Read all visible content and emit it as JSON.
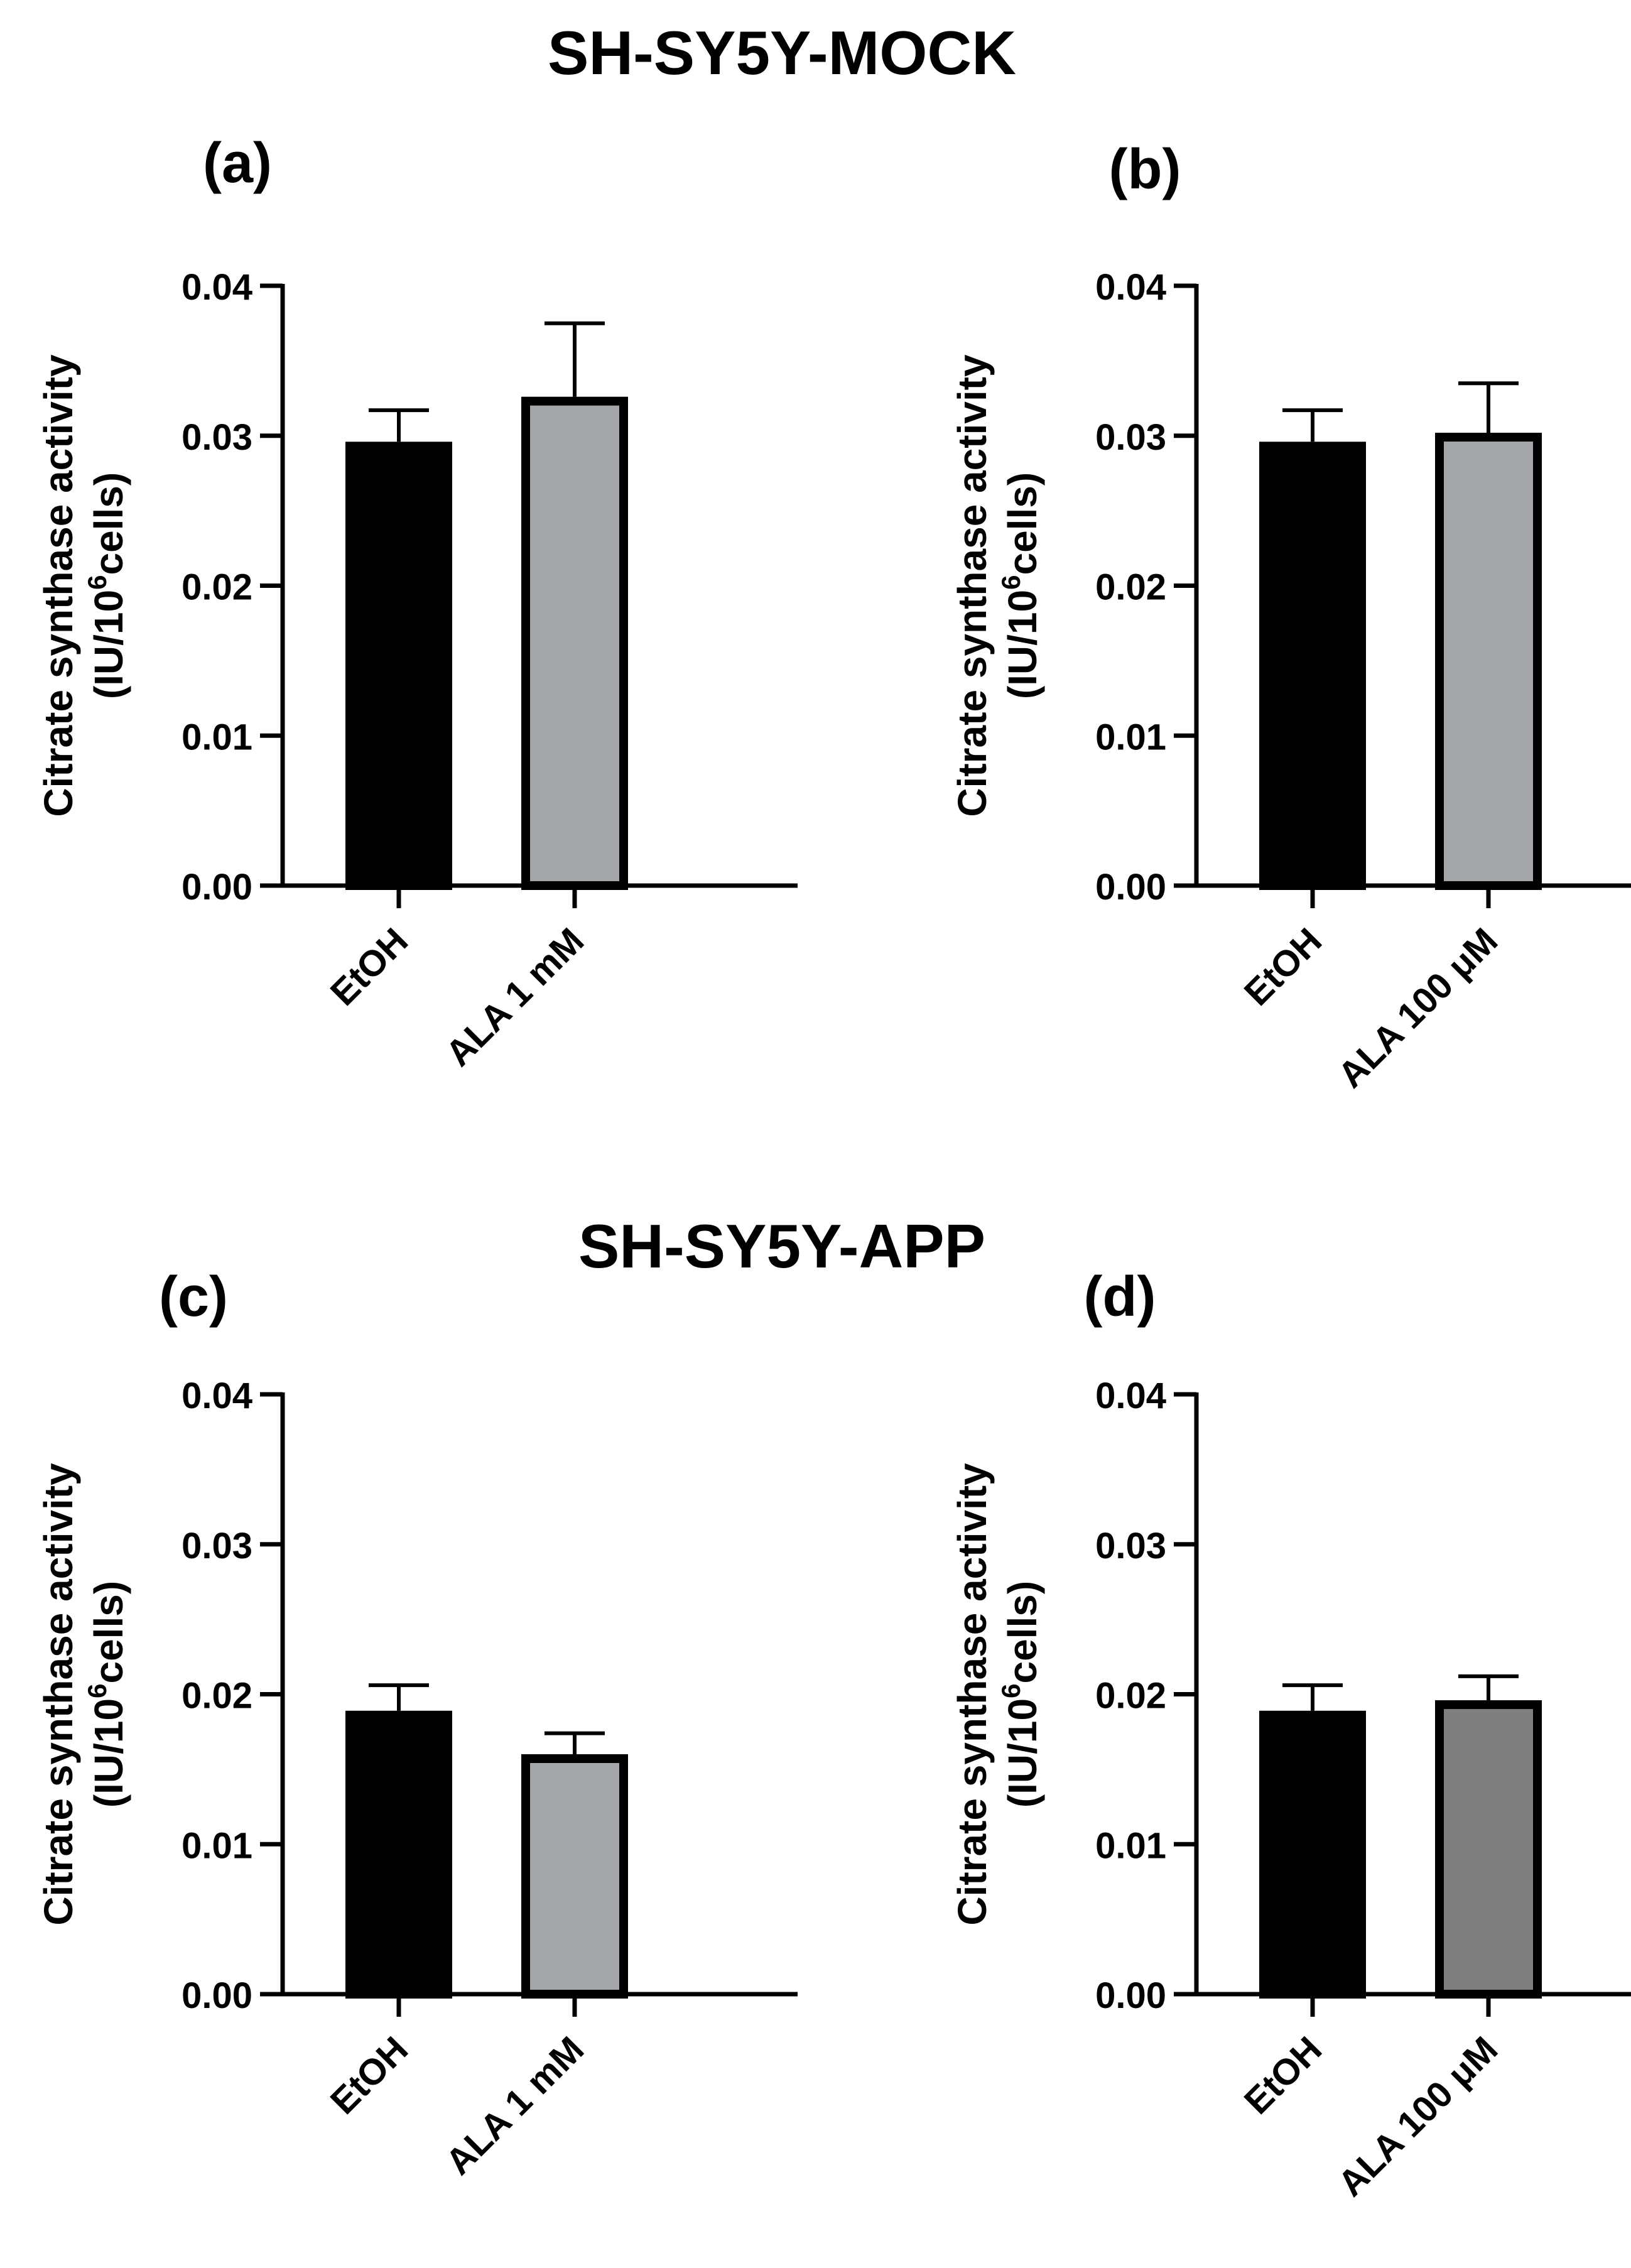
{
  "figure": {
    "section_titles": [
      "SH-SY5Y-MOCK",
      "SH-SY5Y-APP"
    ]
  },
  "colors": {
    "axis": "#000000",
    "etoh_fill": "#000000",
    "ala_fill_light": "#a4a5a9",
    "ala_fill_dark": "#7f7f7f",
    "bar_border": "#000000"
  },
  "chart_data": [
    {
      "panel_label": "(a)",
      "type": "bar",
      "title": "",
      "ylabel_line1": "Citrate synthase activity",
      "ylabel_line2": "(IU/10",
      "ylabel_sup": "6",
      "ylabel_line2_end": "cells)",
      "ylim": [
        0,
        0.04
      ],
      "yticks": [
        "0.00",
        "0.01",
        "0.02",
        "0.03",
        "0.04"
      ],
      "ytick_values": [
        0,
        0.01,
        0.02,
        0.03,
        0.04
      ],
      "categories": [
        "EtOH",
        "ALA 1 mM"
      ],
      "values": [
        0.0296,
        0.0326
      ],
      "errors": [
        0.0021,
        0.0049
      ],
      "colors": [
        "#000000",
        "#a4a5a9"
      ]
    },
    {
      "panel_label": "(b)",
      "type": "bar",
      "title": "",
      "ylabel_line1": "Citrate synthase activity",
      "ylabel_line2": "(IU/10",
      "ylabel_sup": "6",
      "ylabel_line2_end": "cells)",
      "ylim": [
        0,
        0.04
      ],
      "yticks": [
        "0.00",
        "0.01",
        "0.02",
        "0.03",
        "0.04"
      ],
      "ytick_values": [
        0,
        0.01,
        0.02,
        0.03,
        0.04
      ],
      "categories": [
        "EtOH",
        "ALA 100 μM"
      ],
      "values": [
        0.0296,
        0.0302
      ],
      "errors": [
        0.0021,
        0.0033
      ],
      "colors": [
        "#000000",
        "#a4a5a9"
      ]
    },
    {
      "panel_label": "(c)",
      "type": "bar",
      "title": "",
      "ylabel_line1": "Citrate synthase activity",
      "ylabel_line2": "(IU/10",
      "ylabel_sup": "6",
      "ylabel_line2_end": "cells)",
      "ylim": [
        0,
        0.04
      ],
      "yticks": [
        "0.00",
        "0.01",
        "0.02",
        "0.03",
        "0.04"
      ],
      "ytick_values": [
        0,
        0.01,
        0.02,
        0.03,
        0.04
      ],
      "categories": [
        "EtOH",
        "ALA 1 mM"
      ],
      "values": [
        0.0189,
        0.016
      ],
      "errors": [
        0.0017,
        0.0014
      ],
      "colors": [
        "#000000",
        "#a4a5a9"
      ]
    },
    {
      "panel_label": "(d)",
      "type": "bar",
      "title": "",
      "ylabel_line1": "Citrate synthase activity",
      "ylabel_line2": "(IU/10",
      "ylabel_sup": "6",
      "ylabel_line2_end": "cells)",
      "ylim": [
        0,
        0.04
      ],
      "yticks": [
        "0.00",
        "0.01",
        "0.02",
        "0.03",
        "0.04"
      ],
      "ytick_values": [
        0,
        0.01,
        0.02,
        0.03,
        0.04
      ],
      "categories": [
        "EtOH",
        "ALA 100 μM"
      ],
      "values": [
        0.0189,
        0.0196
      ],
      "errors": [
        0.0017,
        0.0016
      ],
      "colors": [
        "#000000",
        "#7f7f7f"
      ]
    }
  ]
}
